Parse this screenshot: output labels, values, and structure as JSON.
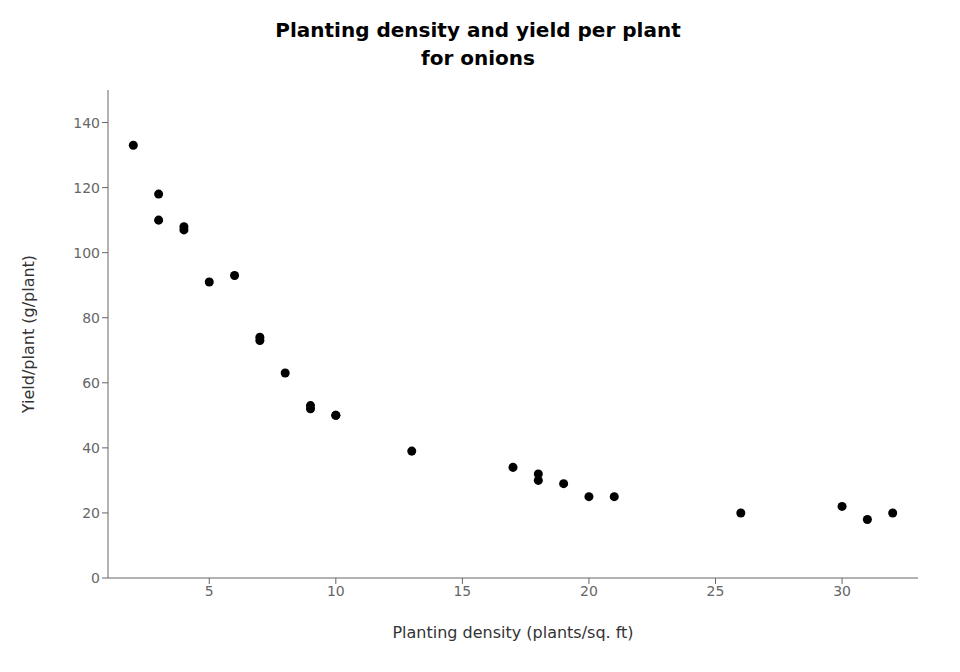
{
  "chart_data": {
    "type": "scatter",
    "title": "Planting density and yield per plant\nfor onions",
    "xlabel": "Planting density (plants/sq. ft)",
    "ylabel": "Yield/plant (g/plant)",
    "x": [
      2,
      3,
      3,
      4,
      4,
      5,
      6,
      7,
      7,
      8,
      9,
      9,
      10,
      10,
      13,
      17,
      18,
      18,
      19,
      20,
      21,
      26,
      30,
      31,
      32
    ],
    "values": [
      133,
      118,
      110,
      108,
      107,
      91,
      93,
      74,
      73,
      63,
      53,
      52,
      50,
      50,
      39,
      34,
      32,
      30,
      29,
      25,
      25,
      20,
      22,
      18,
      20
    ],
    "xlim": [
      1,
      33
    ],
    "ylim": [
      0,
      150
    ],
    "xticks": [
      5,
      10,
      15,
      20,
      25,
      30
    ],
    "yticks": [
      0,
      20,
      40,
      60,
      80,
      100,
      120,
      140
    ],
    "color": "#000000",
    "marker": "circle",
    "grid": false
  }
}
